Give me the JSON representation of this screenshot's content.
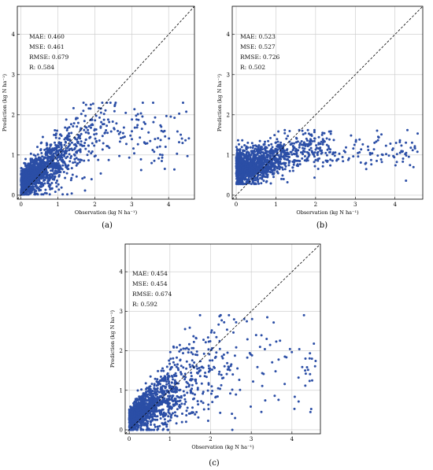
{
  "figure": {
    "point_color": "#2b4ea6",
    "grid_color": "#c8c8c8",
    "diag_color": "#000000"
  },
  "chart_data": [
    {
      "type": "scatter",
      "caption": "(a)",
      "xlabel": "Observation (kg N ha⁻¹)",
      "ylabel": "Prediction (kg N ha⁻¹)",
      "xlim": [
        -0.1,
        4.7
      ],
      "ylim": [
        -0.1,
        4.7
      ],
      "xticks": [
        "0",
        "1",
        "2",
        "3",
        "4"
      ],
      "yticks": [
        "0",
        "1",
        "2",
        "3",
        "4"
      ],
      "grid": true,
      "identity_line": true,
      "stats": [
        "MAE: 0.460",
        "MSE: 0.461",
        "RMSE: 0.679",
        "R: 0.584"
      ],
      "r": 0.584
    },
    {
      "type": "scatter",
      "caption": "(b)",
      "xlabel": "Observation (kg N ha⁻¹)",
      "ylabel": "Prediction (kg N ha⁻¹)",
      "xlim": [
        -0.1,
        4.7
      ],
      "ylim": [
        -0.1,
        4.7
      ],
      "xticks": [
        "0",
        "1",
        "2",
        "3",
        "4"
      ],
      "yticks": [
        "0",
        "1",
        "2",
        "3",
        "4"
      ],
      "grid": true,
      "identity_line": true,
      "stats": [
        "MAE: 0.523",
        "MSE: 0.527",
        "RMSE: 0.726",
        "R: 0.502"
      ],
      "r": 0.502
    },
    {
      "type": "scatter",
      "caption": "(c)",
      "xlabel": "Observation (kg N ha⁻¹)",
      "ylabel": "Prediction (kg N ha⁻¹)",
      "xlim": [
        -0.1,
        4.7
      ],
      "ylim": [
        -0.1,
        4.7
      ],
      "xticks": [
        "0",
        "1",
        "2",
        "3",
        "4"
      ],
      "yticks": [
        "0",
        "1",
        "2",
        "3",
        "4"
      ],
      "grid": true,
      "identity_line": true,
      "stats": [
        "MAE: 0.454",
        "MSE: 0.454",
        "RMSE: 0.674",
        "R: 0.592"
      ],
      "r": 0.592
    }
  ]
}
